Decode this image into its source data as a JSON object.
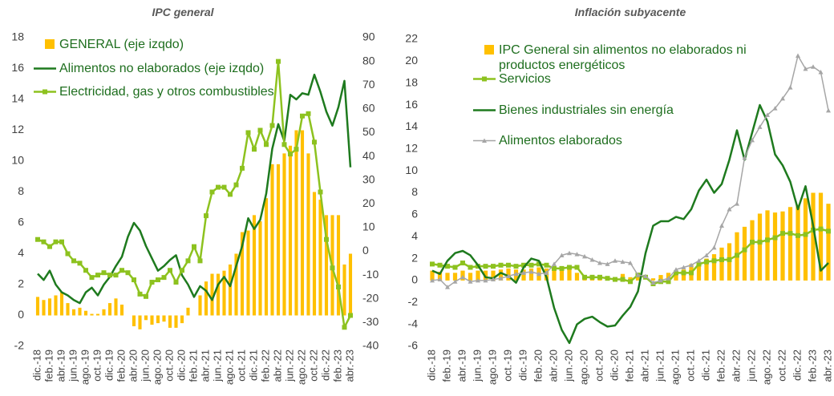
{
  "chart_data": [
    {
      "type": "combo",
      "title": "IPC general",
      "categories": [
        "dic.-18",
        null,
        "feb.-19",
        null,
        "abr.-19",
        null,
        "jun.-19",
        null,
        "ago.-19",
        null,
        "oct.-19",
        null,
        "dic.-19",
        null,
        "feb.-20",
        null,
        "abr.-20",
        null,
        "jun.-20",
        null,
        "ago.-20",
        null,
        "oct.-20",
        null,
        "dic.-20",
        null,
        "feb.-21",
        null,
        "abr.-21",
        null,
        "jun.-21",
        null,
        "ago.-21",
        null,
        "oct.-21",
        null,
        "dic.-21",
        null,
        "feb.-22",
        null,
        "abr.-22",
        null,
        "jun.-22",
        null,
        "ago.-22",
        null,
        "oct.-22",
        null,
        "dic.-22",
        null,
        "feb.-23",
        null,
        "abr.-23"
      ],
      "ylim": [
        -2,
        18
      ],
      "yticks": [
        -2,
        0,
        2,
        4,
        6,
        8,
        10,
        12,
        14,
        16,
        18
      ],
      "y2lim": [
        -40,
        90
      ],
      "y2ticks": [
        -40,
        -30,
        -20,
        -10,
        0,
        10,
        20,
        30,
        40,
        50,
        60,
        70,
        80,
        90
      ],
      "series": [
        {
          "name": "GENERAL (eje izqdo)",
          "kind": "bar",
          "color": "#ffc000",
          "values": [
            1.2,
            1.0,
            1.1,
            1.3,
            1.5,
            0.8,
            0.4,
            0.5,
            0.3,
            0.1,
            0.1,
            0.4,
            0.8,
            1.1,
            0.7,
            0.0,
            -0.7,
            -0.9,
            -0.3,
            -0.6,
            -0.5,
            -0.4,
            -0.8,
            -0.8,
            -0.5,
            0.5,
            0.0,
            1.3,
            2.2,
            2.7,
            2.7,
            2.9,
            3.3,
            4.0,
            5.4,
            5.5,
            6.5,
            6.1,
            7.6,
            9.8,
            9.8,
            10.5,
            11.0,
            12.0,
            12.0,
            10.5,
            8.0,
            7.5,
            6.5,
            6.5,
            6.5,
            3.3,
            4.0
          ]
        },
        {
          "name": "Alimentos no elaborados (eje izqdo)",
          "kind": "line",
          "color": "#1e7a1e",
          "values": [
            2.7,
            2.3,
            2.9,
            2.0,
            1.5,
            1.3,
            1.0,
            0.8,
            1.5,
            1.8,
            1.3,
            2.0,
            2.5,
            3.2,
            3.8,
            5.1,
            6.0,
            5.5,
            4.5,
            3.7,
            2.9,
            3.2,
            3.6,
            3.9,
            2.6,
            2.0,
            1.2,
            1.9,
            1.6,
            1.0,
            2.0,
            2.5,
            1.9,
            3.2,
            4.5,
            6.3,
            5.6,
            6.2,
            7.9,
            10.8,
            12.4,
            11.3,
            14.3,
            14.0,
            14.4,
            14.3,
            15.6,
            14.5,
            13.2,
            12.3,
            13.5,
            15.2,
            9.6
          ]
        },
        {
          "name": "Electricidad, gas y otros combustibles",
          "kind": "line",
          "marker": "square",
          "color": "#8dc21f",
          "axis": "y2",
          "values": [
            5,
            4,
            2,
            4,
            4,
            -1,
            -4,
            -5,
            -8,
            -11,
            -10,
            -9,
            -10,
            -10,
            -8,
            -9,
            -12,
            -18,
            -19,
            -13,
            -12,
            -11,
            -8,
            -13,
            -8,
            -4,
            2,
            -4,
            15,
            25,
            27,
            27,
            24,
            28,
            35,
            50,
            43,
            51,
            45,
            53,
            80,
            45,
            41,
            43,
            57,
            58,
            46,
            25,
            5,
            -7,
            -15,
            -32,
            -27
          ]
        }
      ]
    },
    {
      "type": "combo",
      "title": "Inflación subyacente",
      "categories": [
        "dic.-18",
        null,
        "feb.-19",
        null,
        "abr.-19",
        null,
        "jun.-19",
        null,
        "ago.-19",
        null,
        "oct.-19",
        null,
        "dic.-19",
        null,
        "feb.-20",
        null,
        "abr.-20",
        null,
        "jun.-20",
        null,
        "ago.-20",
        null,
        "oct.-20",
        null,
        "dic.-20",
        null,
        "feb.-21",
        null,
        "abr.-21",
        null,
        "jun.-21",
        null,
        "ago.-21",
        null,
        "oct.-21",
        null,
        "dic.-21",
        null,
        "feb.-22",
        null,
        "abr.-22",
        null,
        "jun.-22",
        null,
        "ago.-22",
        null,
        "oct.-22",
        null,
        "dic.-22",
        null,
        "feb.-23",
        null,
        "abr.-23"
      ],
      "ylim": [
        -6,
        22
      ],
      "yticks": [
        -6,
        -4,
        -2,
        0,
        2,
        4,
        6,
        8,
        10,
        12,
        14,
        16,
        18,
        20,
        22
      ],
      "series": [
        {
          "name": "IPC General sin alimentos no elaborados ni productos energéticos",
          "kind": "bar",
          "color": "#ffc000",
          "values": [
            0.9,
            0.8,
            0.7,
            0.7,
            0.9,
            0.7,
            0.9,
            0.9,
            0.9,
            1.0,
            1.1,
            1.0,
            1.0,
            1.1,
            1.2,
            1.1,
            1.1,
            1.1,
            1.0,
            0.7,
            0.4,
            0.3,
            0.3,
            0.2,
            0.2,
            0.6,
            0.3,
            0.3,
            0.0,
            0.2,
            0.5,
            0.7,
            0.7,
            1.0,
            1.5,
            1.6,
            2.0,
            2.4,
            3.0,
            3.4,
            4.4,
            4.9,
            5.5,
            6.1,
            6.4,
            6.2,
            6.3,
            6.7,
            6.9,
            7.5,
            8.0,
            8.0,
            7.0
          ]
        },
        {
          "name": "Servicios",
          "kind": "line",
          "marker": "square",
          "color": "#8dc21f",
          "values": [
            1.5,
            1.4,
            1.3,
            1.2,
            1.6,
            1.2,
            1.3,
            1.3,
            1.3,
            1.4,
            1.4,
            1.3,
            1.4,
            1.4,
            1.5,
            1.4,
            1.1,
            1.1,
            1.2,
            1.2,
            0.3,
            0.3,
            0.3,
            0.2,
            0.1,
            0.1,
            -0.1,
            0.5,
            0.3,
            -0.3,
            -0.1,
            -0.1,
            0.7,
            0.7,
            0.7,
            1.5,
            1.7,
            1.8,
            1.9,
            1.9,
            2.3,
            2.8,
            3.5,
            3.5,
            3.7,
            3.9,
            4.3,
            4.3,
            4.1,
            4.2,
            4.6,
            4.7,
            4.5
          ]
        },
        {
          "name": "Bienes industriales sin energía",
          "kind": "line",
          "color": "#1e7a1e",
          "values": [
            0.9,
            0.6,
            1.8,
            2.5,
            2.7,
            2.3,
            1.4,
            0.3,
            0.2,
            0.7,
            0.4,
            -0.2,
            1.2,
            2.0,
            1.8,
            0.3,
            -2.5,
            -4.5,
            -5.7,
            -4.0,
            -3.5,
            -3.3,
            -3.8,
            -4.2,
            -4.1,
            -3.2,
            -2.4,
            -1.0,
            2.5,
            5.0,
            5.4,
            5.4,
            5.8,
            5.6,
            6.5,
            8.2,
            9.2,
            8.0,
            8.8,
            11.0,
            13.7,
            11.0,
            13.5,
            16.0,
            14.5,
            11.5,
            10.5,
            9.0,
            6.5,
            8.6,
            5.0,
            0.9,
            1.6
          ]
        },
        {
          "name": "Alimentos elaborados",
          "kind": "line",
          "marker": "triangle",
          "color": "#a6a6a6",
          "values": [
            0.0,
            0.1,
            -0.6,
            -0.1,
            0.3,
            -0.1,
            0.0,
            0.0,
            0.1,
            0.2,
            0.4,
            0.6,
            0.7,
            0.8,
            0.6,
            0.7,
            1.5,
            2.3,
            2.5,
            2.4,
            2.2,
            1.9,
            1.6,
            1.5,
            1.8,
            1.7,
            1.6,
            0.5,
            0.4,
            -0.2,
            0.0,
            0.2,
            1.0,
            1.2,
            1.4,
            1.8,
            2.3,
            3.0,
            5.0,
            6.5,
            7.0,
            11.2,
            12.8,
            14.0,
            15.1,
            15.7,
            16.6,
            17.6,
            20.5,
            19.3,
            19.5,
            19.0,
            15.5
          ]
        }
      ]
    }
  ]
}
